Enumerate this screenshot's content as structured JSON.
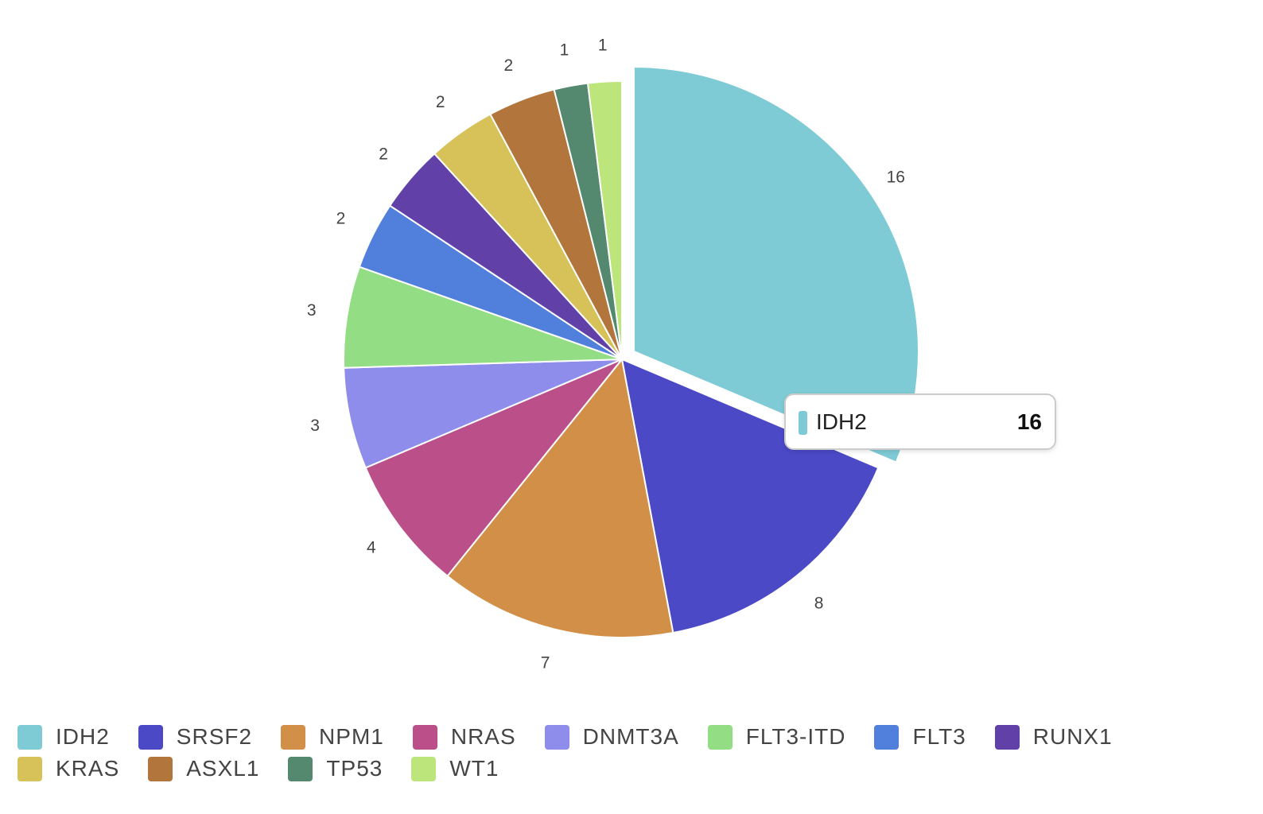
{
  "chart_data": {
    "type": "pie",
    "categories": [
      "IDH2",
      "SRSF2",
      "NPM1",
      "NRAS",
      "DNMT3A",
      "FLT3-ITD",
      "FLT3",
      "RUNX1",
      "KRAS",
      "ASXL1",
      "TP53",
      "WT1"
    ],
    "values": [
      16,
      8,
      7,
      4,
      3,
      3,
      2,
      2,
      2,
      2,
      1,
      1
    ],
    "colors": [
      "#7ecbd5",
      "#4b49c6",
      "#d28f48",
      "#bb4f89",
      "#8f8deb",
      "#93de85",
      "#507fdc",
      "#6141a8",
      "#d6c258",
      "#b2763c",
      "#55896f",
      "#bce67c"
    ],
    "emphasized": "IDH2",
    "labels_shown": true,
    "legend_position": "bottom-left",
    "title": "",
    "tooltip": {
      "name": "IDH2",
      "value": "16"
    }
  }
}
